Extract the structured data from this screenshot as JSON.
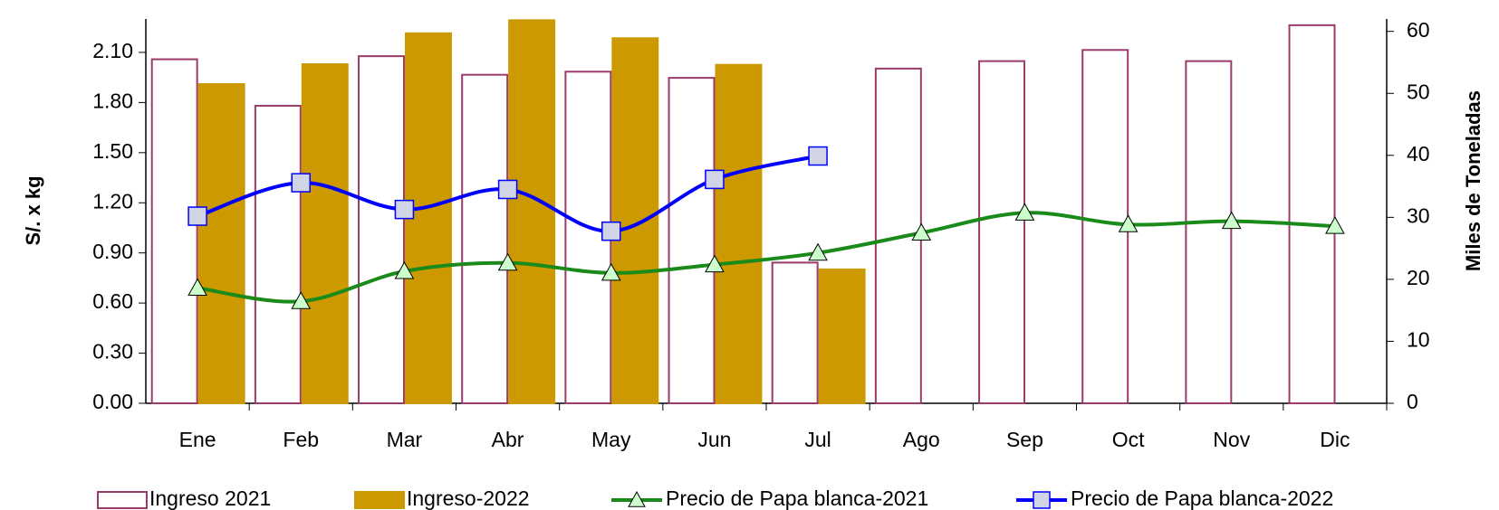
{
  "chart_data": {
    "type": "combo",
    "categories": [
      "Ene",
      "Feb",
      "Mar",
      "Abr",
      "May",
      "Jun",
      "Jul",
      "Ago",
      "Sep",
      "Oct",
      "Nov",
      "Dic"
    ],
    "ylabel": "S/. x kg",
    "y2label": "Miles de Toneladas",
    "ylim": [
      0,
      2.3
    ],
    "yticks": [
      {
        "value": 0,
        "label": "0.00"
      },
      {
        "value": 0.3,
        "label": "0.30"
      },
      {
        "value": 0.6,
        "label": "0.60"
      },
      {
        "value": 0.9,
        "label": "0.90"
      },
      {
        "value": 1.2,
        "label": "1.20"
      },
      {
        "value": 1.5,
        "label": "1.50"
      },
      {
        "value": 1.8,
        "label": "1.80"
      },
      {
        "value": 2.1,
        "label": "2.10"
      }
    ],
    "y2lim": [
      0,
      62
    ],
    "y2ticks": [
      0,
      10,
      20,
      30,
      40,
      50,
      60
    ],
    "series": [
      {
        "name": "Ingreso 2021",
        "type": "bar",
        "axis": "y2",
        "color": "#9b3b6b",
        "fill": "#ffffff",
        "values": [
          55.5,
          48,
          56,
          53,
          53.5,
          52.5,
          22.7,
          54,
          55.2,
          57,
          55.2,
          61
        ]
      },
      {
        "name": "Ingreso-2022",
        "type": "bar",
        "axis": "y2",
        "color": "#cc9900",
        "fill": "#cc9900",
        "values": [
          51.5,
          54.7,
          59.7,
          61.8,
          58.9,
          54.6,
          21.6,
          null,
          null,
          null,
          null,
          null
        ]
      },
      {
        "name": "Precio de Papa blanca-2021",
        "type": "line",
        "marker": "triangle",
        "color": "#1a8a1a",
        "fill": "#ccffcc",
        "values": [
          0.69,
          0.61,
          0.79,
          0.84,
          0.78,
          0.83,
          0.9,
          1.02,
          1.14,
          1.07,
          1.09,
          1.06
        ]
      },
      {
        "name": "Precio de Papa blanca-2022",
        "type": "line",
        "marker": "square",
        "color": "#0000ff",
        "fill": "#d0d4e4",
        "values": [
          1.12,
          1.32,
          1.16,
          1.28,
          1.03,
          1.34,
          1.48,
          null,
          null,
          null,
          null,
          null
        ]
      }
    ]
  }
}
